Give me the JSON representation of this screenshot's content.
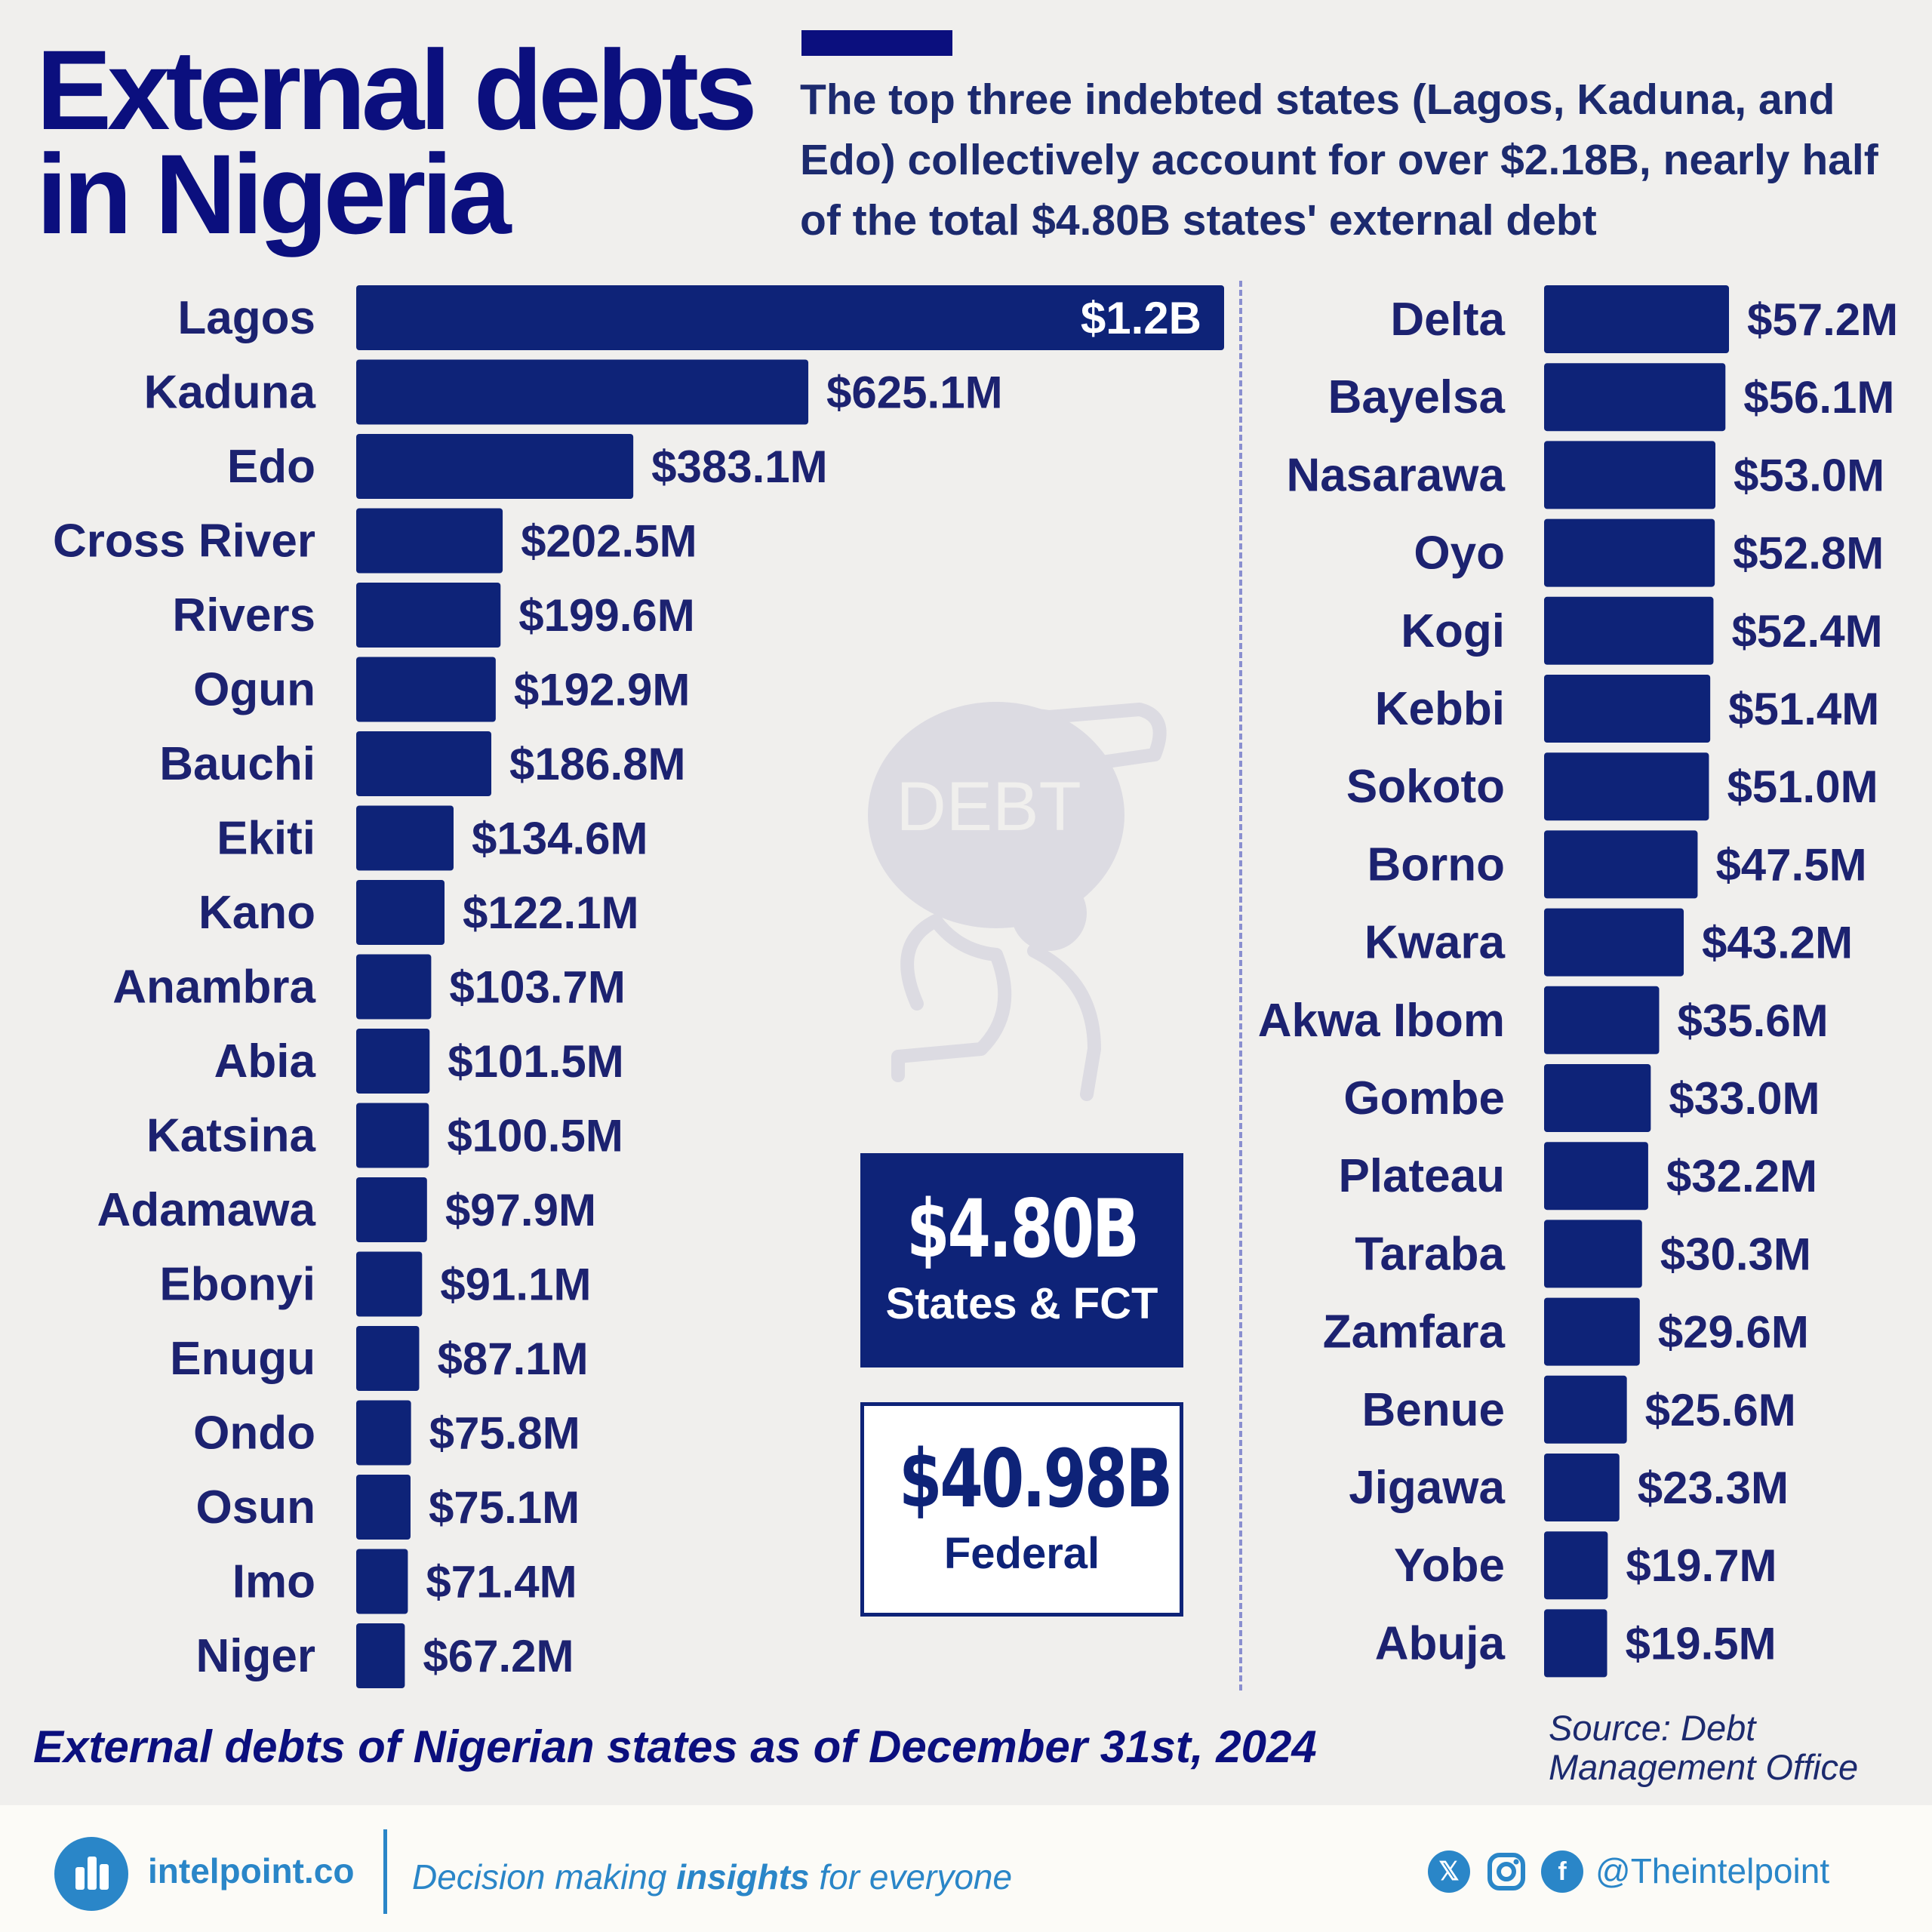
{
  "header": {
    "title_line1": "External debts",
    "title_line2": "in Nigeria",
    "subtitle": "The top three indebted states (Lagos, Kaduna, and Edo) collectively account for over $2.18B, nearly half of the total $4.80B states' external debt"
  },
  "chart_data": {
    "type": "bar",
    "orientation": "horizontal",
    "unit": "USD millions",
    "panels": [
      {
        "categories": [
          "Lagos",
          "Kaduna",
          "Edo",
          "Cross River",
          "Rivers",
          "Ogun",
          "Bauchi",
          "Ekiti",
          "Kano",
          "Anambra",
          "Abia",
          "Katsina",
          "Adamawa",
          "Ebonyi",
          "Enugu",
          "Ondo",
          "Osun",
          "Imo",
          "Niger"
        ],
        "values": [
          1200,
          625.1,
          383.1,
          202.5,
          199.6,
          192.9,
          186.8,
          134.6,
          122.1,
          103.7,
          101.5,
          100.5,
          97.9,
          91.1,
          87.1,
          75.8,
          75.1,
          71.4,
          67.2
        ],
        "labels": [
          "$1.2B",
          "$625.1M",
          "$383.1M",
          "$202.5M",
          "$199.6M",
          "$192.9M",
          "$186.8M",
          "$134.6M",
          "$122.1M",
          "$103.7M",
          "$101.5M",
          "$100.5M",
          "$97.9M",
          "$91.1M",
          "$87.1M",
          "$75.8M",
          "$75.1M",
          "$71.4M",
          "$67.2M"
        ]
      },
      {
        "categories": [
          "Delta",
          "Bayelsa",
          "Nasarawa",
          "Oyo",
          "Kogi",
          "Kebbi",
          "Sokoto",
          "Borno",
          "Kwara",
          "Akwa Ibom",
          "Gombe",
          "Plateau",
          "Taraba",
          "Zamfara",
          "Benue",
          "Jigawa",
          "Yobe",
          "Abuja"
        ],
        "values": [
          57.2,
          56.1,
          53.0,
          52.8,
          52.4,
          51.4,
          51.0,
          47.5,
          43.2,
          35.6,
          33.0,
          32.2,
          30.3,
          29.6,
          25.6,
          23.3,
          19.7,
          19.5
        ],
        "labels": [
          "$57.2M",
          "$56.1M",
          "$53.0M",
          "$52.8M",
          "$52.4M",
          "$51.4M",
          "$51.0M",
          "$47.5M",
          "$43.2M",
          "$35.6M",
          "$33.0M",
          "$32.2M",
          "$30.3M",
          "$29.6M",
          "$25.6M",
          "$23.3M",
          "$19.7M",
          "$19.5M"
        ]
      }
    ],
    "bar_color": "#0e2378"
  },
  "totals": {
    "states_value": "$4.80B",
    "states_label": "States & FCT",
    "federal_value": "$40.98B",
    "federal_label": "Federal"
  },
  "illustration": {
    "bag_text": "DEBT"
  },
  "caption": "External debts of Nigerian states as of December 31st, 2024",
  "source": "Source: Debt Management Office",
  "footer": {
    "brand": "intelpoint.co",
    "tagline_pre": "Decision making ",
    "tagline_bold": "insights",
    "tagline_post": " for everyone",
    "handle": "@Theintelpoint",
    "icons": [
      "x-icon",
      "instagram-icon",
      "facebook-icon"
    ],
    "accent": "#2a86c8"
  }
}
